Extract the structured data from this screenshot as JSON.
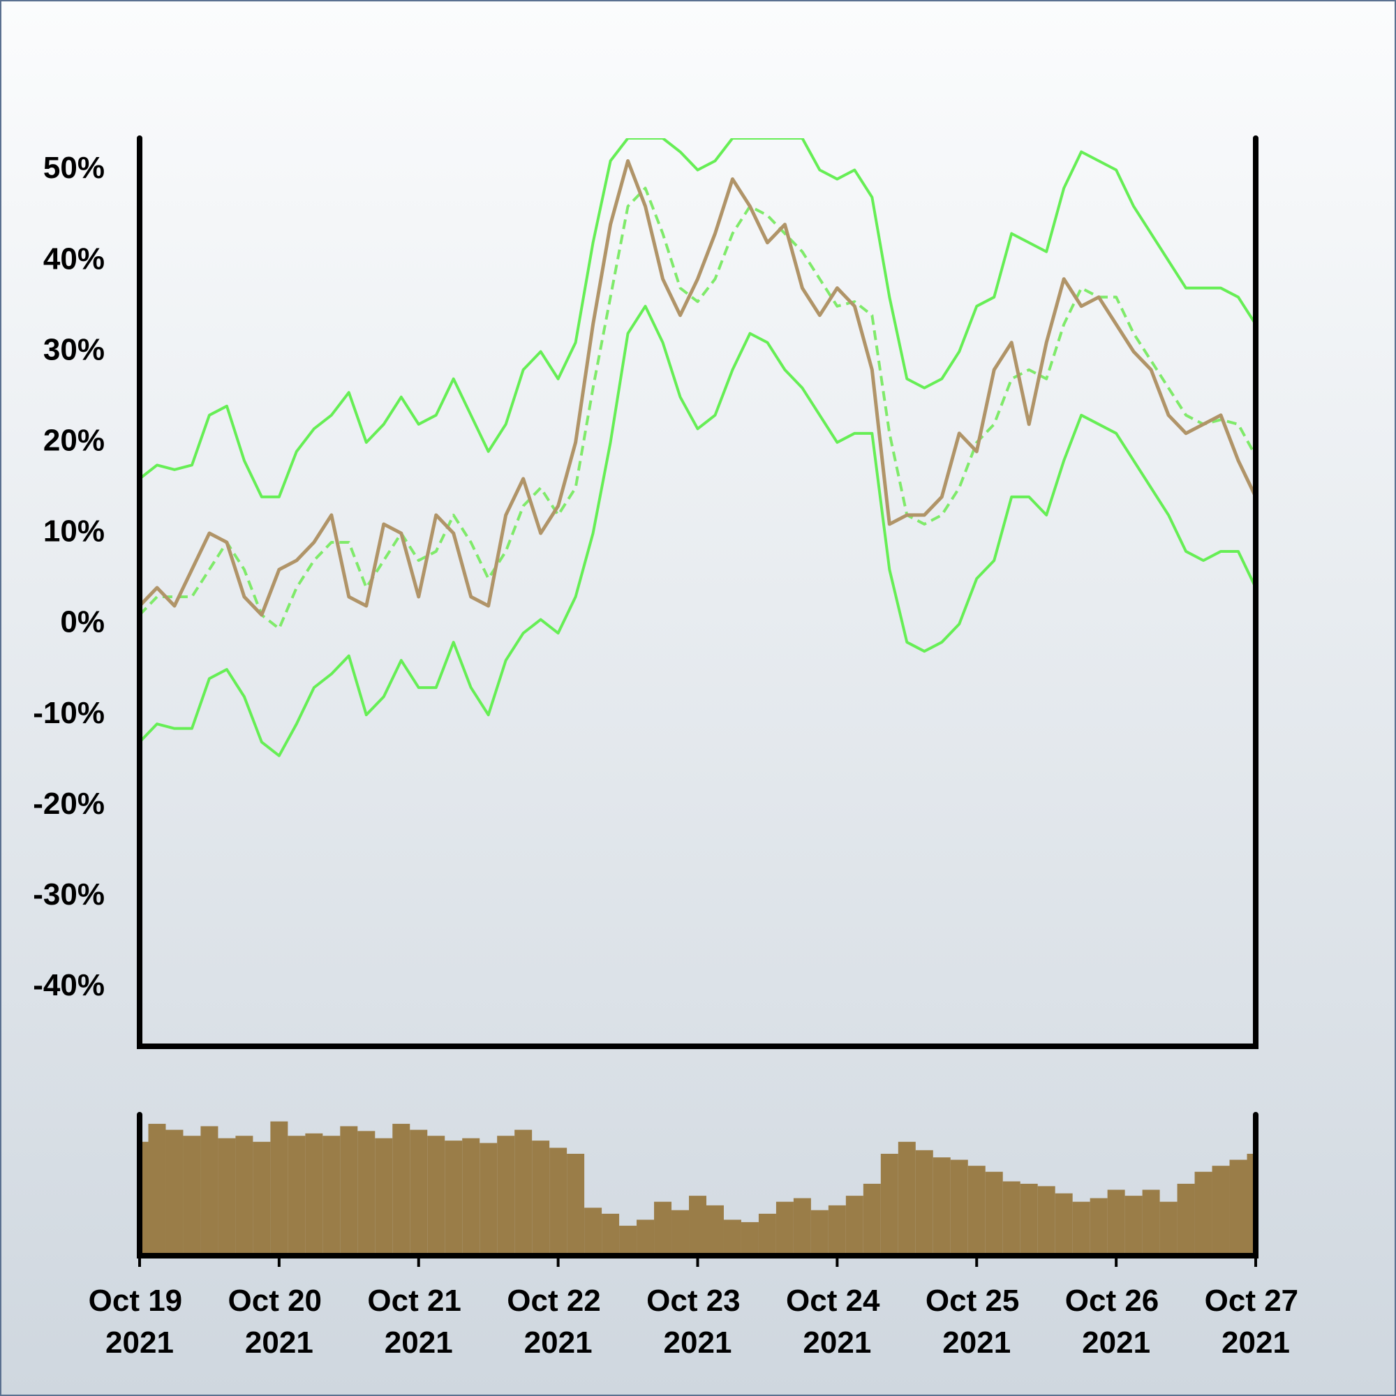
{
  "chart_data": {
    "type": "line",
    "categories": [
      "Oct 19 2021",
      null,
      null,
      null,
      null,
      null,
      null,
      null,
      "Oct 20 2021",
      null,
      null,
      null,
      null,
      null,
      null,
      null,
      "Oct 21 2021",
      null,
      null,
      null,
      null,
      null,
      null,
      null,
      "Oct 22 2021",
      null,
      null,
      null,
      null,
      null,
      null,
      null,
      "Oct 23 2021",
      null,
      null,
      null,
      null,
      null,
      null,
      null,
      "Oct 24 2021",
      null,
      null,
      null,
      null,
      null,
      null,
      null,
      "Oct 25 2021",
      null,
      null,
      null,
      null,
      null,
      null,
      null,
      "Oct 26 2021",
      null,
      null,
      null,
      null,
      null,
      null,
      null,
      "Oct 27 2021"
    ],
    "series": [
      {
        "color": "#66ee55",
        "width": 4,
        "dashed": false,
        "values": [
          16,
          17.5,
          17,
          17.5,
          23,
          24,
          18,
          14,
          14,
          19,
          21.5,
          23,
          25.5,
          20,
          22,
          25,
          22,
          23,
          27,
          23,
          19,
          22,
          28,
          30,
          27,
          31,
          42,
          51,
          53.5,
          53.5,
          53.5,
          52,
          50,
          51,
          53.5,
          53.5,
          53.5,
          53.5,
          53.5,
          50,
          49,
          50,
          47,
          36,
          27,
          26,
          27,
          30,
          35,
          36,
          43,
          42,
          41,
          48,
          52,
          51,
          50,
          46,
          43,
          40,
          37,
          37,
          37,
          36,
          33
        ]
      },
      {
        "color": "#66ee55",
        "width": 4,
        "dashed": false,
        "values": [
          -13,
          -11,
          -11.5,
          -11.5,
          -6,
          -5,
          -8,
          -13,
          -14.5,
          -11,
          -7,
          -5.5,
          -3.5,
          -10,
          -8,
          -4,
          -7,
          -7,
          -2,
          -7,
          -10,
          -4,
          -1,
          0.5,
          -1,
          3,
          10,
          20,
          32,
          35,
          31,
          25,
          21.5,
          23,
          28,
          32,
          31,
          28,
          26,
          23,
          20,
          21,
          21,
          6,
          -2,
          -3,
          -2,
          0,
          5,
          7,
          14,
          14,
          12,
          18,
          23,
          22,
          21,
          18,
          15,
          12,
          8,
          7,
          8,
          8,
          4
        ]
      },
      {
        "color": "#7fea6a",
        "width": 4,
        "dashed": true,
        "values": [
          1,
          3,
          3,
          3,
          6,
          9,
          6,
          1,
          -0.5,
          4,
          7,
          9,
          9,
          4,
          7,
          10,
          7,
          8,
          12,
          9,
          5,
          8,
          13,
          15,
          12,
          15,
          26,
          36,
          46,
          48,
          43,
          37,
          35.5,
          38,
          43,
          46,
          45,
          43,
          41,
          38,
          35,
          35.5,
          34,
          21,
          12,
          11,
          12,
          15,
          20,
          22,
          27,
          28,
          27,
          33,
          37,
          36,
          36,
          32,
          29,
          26,
          23,
          22,
          22.5,
          22,
          18.5
        ]
      },
      {
        "color": "#b09468",
        "width": 5,
        "dashed": false,
        "values": [
          2,
          4,
          2,
          6,
          10,
          9,
          3,
          1,
          6,
          7,
          9,
          12,
          3,
          2,
          11,
          10,
          3,
          12,
          10,
          3,
          2,
          12,
          16,
          10,
          13,
          20,
          33,
          44,
          51,
          46,
          38,
          34,
          38,
          43,
          49,
          46,
          42,
          44,
          37,
          34,
          37,
          35,
          28,
          11,
          12,
          12,
          14,
          21,
          19,
          28,
          31,
          22,
          31,
          38,
          35,
          36,
          33,
          30,
          28,
          23,
          21,
          22,
          23,
          18,
          14
        ]
      }
    ],
    "ylim": [
      -46.5,
      53.5
    ],
    "yticks": [
      {
        "value": -40,
        "label": "-40%"
      },
      {
        "value": -30,
        "label": "-30%"
      },
      {
        "value": -20,
        "label": "-20%"
      },
      {
        "value": -10,
        "label": "-10%"
      },
      {
        "value": 0,
        "label": "0%"
      },
      {
        "value": 10,
        "label": "10%"
      },
      {
        "value": 20,
        "label": "20%"
      },
      {
        "value": 30,
        "label": "30%"
      },
      {
        "value": 40,
        "label": "40%"
      },
      {
        "value": 50,
        "label": "50%"
      }
    ],
    "volume": {
      "type": "bar",
      "color": "#9a7d48",
      "values": [
        95,
        110,
        105,
        100,
        108,
        98,
        100,
        95,
        112,
        100,
        102,
        100,
        108,
        104,
        98,
        110,
        105,
        100,
        96,
        98,
        94,
        100,
        105,
        96,
        90,
        85,
        40,
        35,
        25,
        30,
        45,
        38,
        50,
        42,
        30,
        28,
        35,
        45,
        48,
        38,
        42,
        50,
        60,
        85,
        95,
        88,
        82,
        80,
        75,
        70,
        62,
        60,
        58,
        52,
        45,
        48,
        55,
        50,
        55,
        45,
        60,
        70,
        75,
        80,
        85
      ]
    }
  }
}
